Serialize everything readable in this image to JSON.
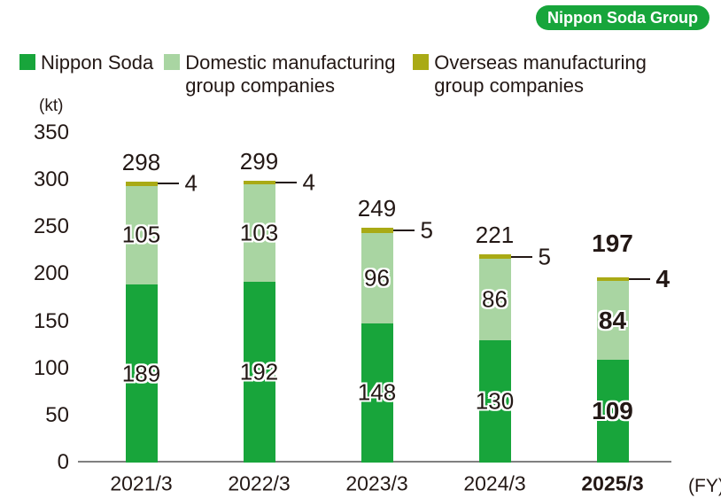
{
  "badge": {
    "label": "Nippon Soda Group",
    "color": "#17a53b"
  },
  "chart_data": {
    "type": "bar",
    "stacked": true,
    "unit_label": "(kt)",
    "axis_suffix_label": "(FY)",
    "categories": [
      "2021/3",
      "2022/3",
      "2023/3",
      "2024/3",
      "2025/3"
    ],
    "series": [
      {
        "name": "Nippon Soda",
        "color": "#18a53b",
        "values": [
          189,
          192,
          148,
          130,
          109
        ]
      },
      {
        "name": "Domestic manufacturing group companies",
        "color": "#a9d5a2",
        "values": [
          105,
          103,
          96,
          86,
          84
        ]
      },
      {
        "name": "Overseas manufacturing group companies",
        "color": "#a9aa15",
        "values": [
          4,
          4,
          5,
          5,
          4
        ]
      }
    ],
    "totals": [
      298,
      299,
      249,
      221,
      197
    ],
    "yticks": [
      0,
      50,
      100,
      150,
      200,
      250,
      300,
      350
    ],
    "ylim": [
      0,
      350
    ],
    "grid": false,
    "legend_position": "top",
    "highlight_index": 4,
    "highlighted_category": "2025/3",
    "text_color": "#231815",
    "axis_color": "#808080"
  }
}
